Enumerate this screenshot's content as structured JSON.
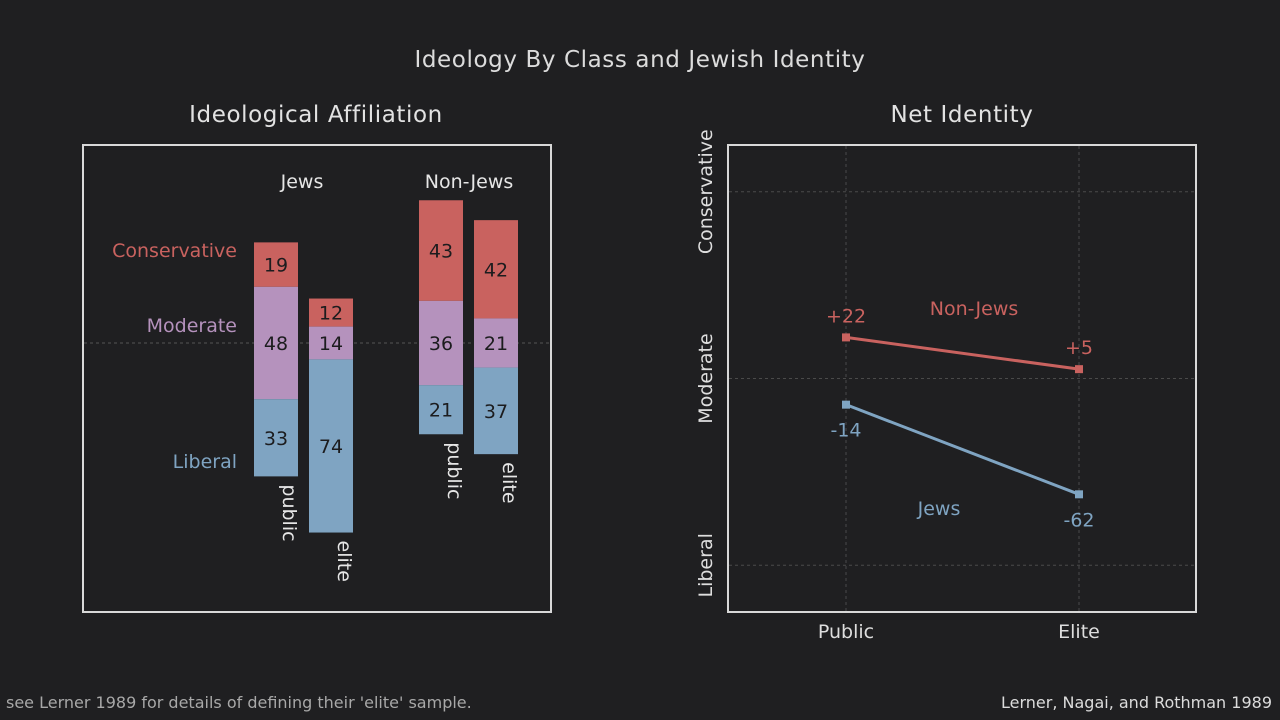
{
  "title": "Ideology By Class and Jewish Identity",
  "footer_note": "see Lerner 1989 for details of defining their 'elite' sample.",
  "citation": "Lerner, Nagai, and Rothman 1989",
  "colors": {
    "background": "#1f1f21",
    "conservative": "#c9625f",
    "moderate": "#b592bd",
    "liberal": "#7fa4c2",
    "frame": "#d8d8d8"
  },
  "chart_data": [
    {
      "type": "bar",
      "stacked": true,
      "title": "Ideological Affiliation",
      "groups": [
        "Jews",
        "Non-Jews"
      ],
      "categories": [
        "public",
        "elite"
      ],
      "segment_labels": [
        "Liberal",
        "Moderate",
        "Conservative"
      ],
      "bars": [
        {
          "group": "Jews",
          "category": "public",
          "liberal": 33,
          "moderate": 48,
          "conservative": 19
        },
        {
          "group": "Jews",
          "category": "elite",
          "liberal": 74,
          "moderate": 14,
          "conservative": 12
        },
        {
          "group": "Non-Jews",
          "category": "public",
          "liberal": 21,
          "moderate": 36,
          "conservative": 43
        },
        {
          "group": "Non-Jews",
          "category": "elite",
          "liberal": 37,
          "moderate": 21,
          "conservative": 42
        }
      ],
      "ylim": [
        -70,
        70
      ]
    },
    {
      "type": "line",
      "title": "Net Identity",
      "x": [
        "Public",
        "Elite"
      ],
      "y_tick_labels": [
        "Liberal",
        "Moderate",
        "Conservative"
      ],
      "y_tick_values": [
        -100,
        0,
        100
      ],
      "ylim": [
        -125,
        125
      ],
      "series": [
        {
          "name": "Non-Jews",
          "values": [
            22,
            5
          ],
          "labels": [
            "+22",
            "+5"
          ]
        },
        {
          "name": "Jews",
          "values": [
            -14,
            -62
          ],
          "labels": [
            "-14",
            "-62"
          ]
        }
      ]
    }
  ]
}
